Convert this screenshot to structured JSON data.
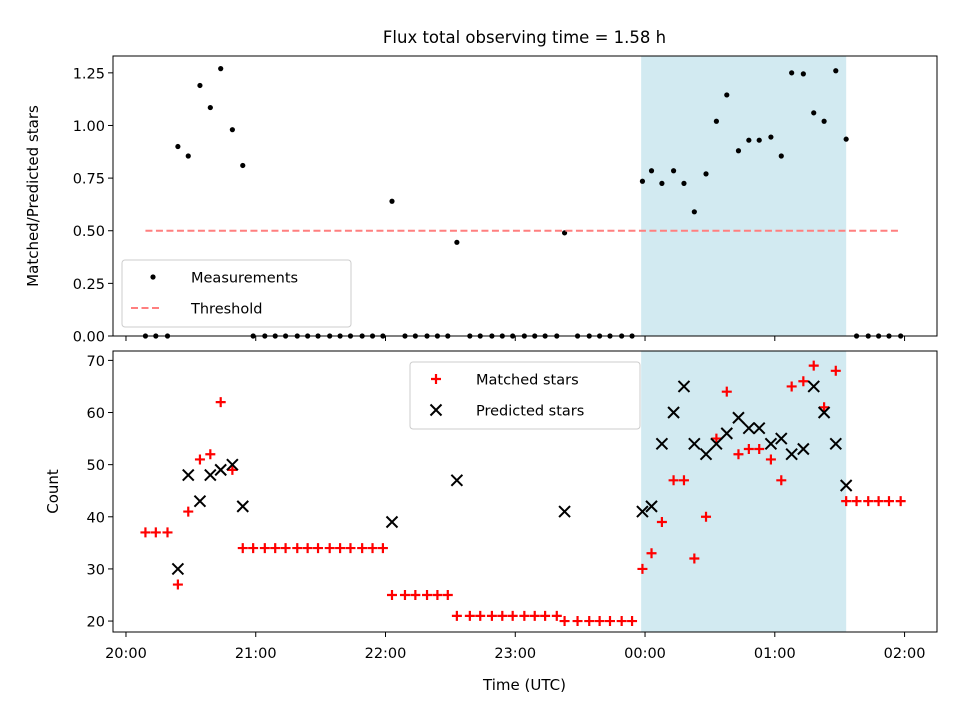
{
  "title": "Flux total observing time = 1.58 h",
  "x_axis": {
    "label": "Time (UTC)",
    "tick_labels": [
      "20:00",
      "21:00",
      "22:00",
      "23:00",
      "00:00",
      "01:00",
      "02:00"
    ],
    "tick_hours": [
      20,
      21,
      22,
      23,
      24,
      25,
      26
    ],
    "range_hours": [
      19.9,
      26.25
    ]
  },
  "shaded_window_hours": [
    23.97,
    25.55
  ],
  "shade_color": "#add8e6",
  "chart_data": [
    {
      "type": "scatter",
      "ylabel": "Matched/Predicted stars",
      "ylim": [
        0,
        1.33
      ],
      "yticks": [
        "0.00",
        "0.25",
        "0.50",
        "0.75",
        "1.00",
        "1.25"
      ],
      "ytick_values": [
        0,
        0.25,
        0.5,
        0.75,
        1.0,
        1.25
      ],
      "legend_position": "lower-left",
      "series": [
        {
          "name": "Measurements",
          "marker": "dot",
          "color": "#000000",
          "x": [
            20.15,
            20.23,
            20.32,
            20.4,
            20.48,
            20.57,
            20.65,
            20.73,
            20.82,
            20.9,
            20.98,
            21.07,
            21.15,
            21.23,
            21.32,
            21.4,
            21.48,
            21.57,
            21.65,
            21.73,
            21.82,
            21.9,
            21.98,
            22.05,
            22.15,
            22.23,
            22.32,
            22.4,
            22.48,
            22.55,
            22.65,
            22.73,
            22.82,
            22.9,
            22.98,
            23.07,
            23.15,
            23.23,
            23.32,
            23.38,
            23.48,
            23.57,
            23.65,
            23.73,
            23.82,
            23.9,
            23.98,
            24.05,
            24.13,
            24.22,
            24.3,
            24.38,
            24.47,
            24.55,
            24.63,
            24.72,
            24.8,
            24.88,
            24.97,
            25.05,
            25.13,
            25.22,
            25.3,
            25.38,
            25.47,
            25.55,
            25.63,
            25.72,
            25.8,
            25.88,
            25.97
          ],
          "y": [
            0,
            0,
            0,
            0.9,
            0.855,
            1.19,
            1.085,
            1.27,
            0.98,
            0.81,
            0,
            0,
            0,
            0,
            0,
            0,
            0,
            0,
            0,
            0,
            0,
            0,
            0,
            0.64,
            0,
            0,
            0,
            0,
            0,
            0.445,
            0,
            0,
            0,
            0,
            0,
            0,
            0,
            0,
            0,
            0.49,
            0,
            0,
            0,
            0,
            0,
            0,
            0.735,
            0.785,
            0.725,
            0.785,
            0.725,
            0.59,
            0.77,
            1.02,
            1.145,
            0.88,
            0.93,
            0.93,
            0.945,
            0.855,
            1.25,
            1.245,
            1.06,
            1.02,
            1.26,
            0.935,
            0,
            0,
            0,
            0,
            0
          ]
        },
        {
          "name": "Threshold",
          "style": "dashed",
          "color": "#ff7f7f",
          "x": [
            20.15,
            25.97
          ],
          "y": [
            0.5,
            0.5
          ]
        }
      ]
    },
    {
      "type": "scatter",
      "ylabel": "Count",
      "ylim": [
        17.9,
        71.8
      ],
      "yticks": [
        "20",
        "30",
        "40",
        "50",
        "60",
        "70"
      ],
      "ytick_values": [
        20,
        30,
        40,
        50,
        60,
        70
      ],
      "legend_position": "top-center",
      "series": [
        {
          "name": "Matched stars",
          "marker": "plus",
          "color": "#ff0000",
          "x": [
            20.15,
            20.23,
            20.32,
            20.4,
            20.48,
            20.57,
            20.65,
            20.73,
            20.82,
            20.9,
            20.98,
            21.07,
            21.15,
            21.23,
            21.32,
            21.4,
            21.48,
            21.57,
            21.65,
            21.73,
            21.82,
            21.9,
            21.98,
            22.05,
            22.15,
            22.23,
            22.32,
            22.4,
            22.48,
            22.55,
            22.65,
            22.73,
            22.82,
            22.9,
            22.98,
            23.07,
            23.15,
            23.23,
            23.32,
            23.38,
            23.48,
            23.57,
            23.65,
            23.73,
            23.82,
            23.9,
            23.98,
            24.05,
            24.13,
            24.22,
            24.3,
            24.38,
            24.47,
            24.55,
            24.63,
            24.72,
            24.8,
            24.88,
            24.97,
            25.05,
            25.13,
            25.22,
            25.3,
            25.38,
            25.47,
            25.55,
            25.63,
            25.72,
            25.8,
            25.88,
            25.97
          ],
          "y": [
            37,
            37,
            37,
            27,
            41,
            51,
            52,
            62,
            49,
            34,
            34,
            34,
            34,
            34,
            34,
            34,
            34,
            34,
            34,
            34,
            34,
            34,
            34,
            25,
            25,
            25,
            25,
            25,
            25,
            21,
            21,
            21,
            21,
            21,
            21,
            21,
            21,
            21,
            21,
            20,
            20,
            20,
            20,
            20,
            20,
            20,
            30,
            33,
            39,
            47,
            47,
            32,
            40,
            55,
            64,
            52,
            53,
            53,
            51,
            47,
            65,
            66,
            69,
            61,
            68,
            43,
            43,
            43,
            43,
            43,
            43
          ]
        },
        {
          "name": "Predicted stars",
          "marker": "x",
          "color": "#000000",
          "x": [
            20.4,
            20.48,
            20.57,
            20.65,
            20.73,
            20.82,
            20.9,
            22.05,
            22.55,
            23.38,
            23.98,
            24.05,
            24.13,
            24.22,
            24.3,
            24.38,
            24.47,
            24.55,
            24.63,
            24.72,
            24.8,
            24.88,
            24.97,
            25.05,
            25.13,
            25.22,
            25.3,
            25.38,
            25.47,
            25.55
          ],
          "y": [
            30,
            48,
            43,
            48,
            49,
            50,
            42,
            39,
            47,
            41,
            41,
            42,
            54,
            60,
            65,
            54,
            52,
            54,
            56,
            59,
            57,
            57,
            54,
            55,
            52,
            53,
            65,
            60,
            54,
            46
          ]
        }
      ]
    }
  ]
}
